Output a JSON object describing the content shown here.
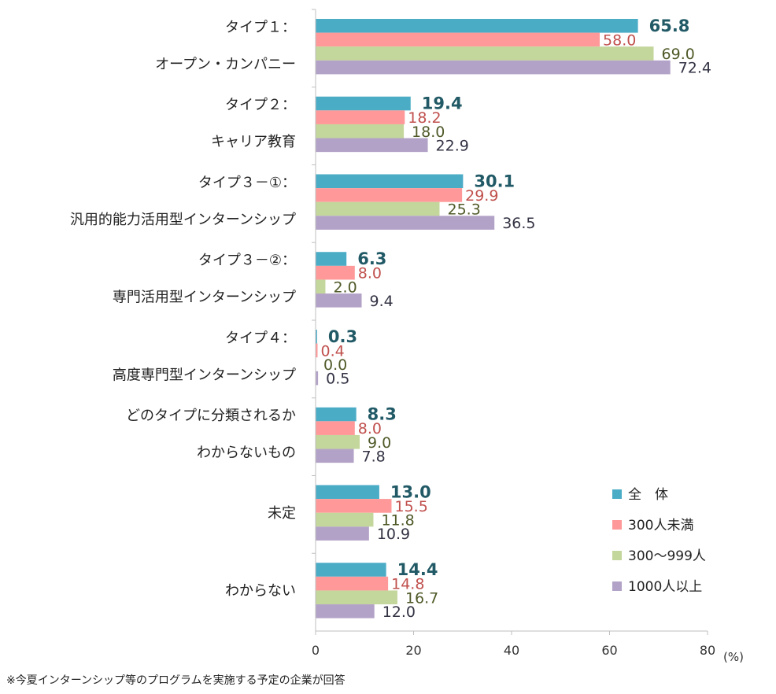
{
  "chart_data": {
    "type": "bar",
    "orientation": "horizontal",
    "categories": [
      [
        "タイプ１：",
        "オープン・カンパニー"
      ],
      [
        "タイプ２：",
        "キャリア教育"
      ],
      [
        "タイプ３－①：",
        "汎用的能力活用型インターンシップ"
      ],
      [
        "タイプ３－②：",
        "専門活用型インターンシップ"
      ],
      [
        "タイプ４：",
        "高度専門型インターンシップ"
      ],
      [
        "どのタイプに分類されるか",
        "わからないもの"
      ],
      [
        "未定"
      ],
      [
        "わからない"
      ]
    ],
    "series": [
      {
        "name": "全　体",
        "color": "#4bacc6",
        "label_color": "#215a66",
        "values": [
          65.8,
          19.4,
          30.1,
          6.3,
          0.3,
          8.3,
          13.0,
          14.4
        ],
        "labels": [
          "65.8",
          "19.4",
          "30.1",
          "6.3",
          "0.3",
          "8.3",
          "13.0",
          "14.4"
        ]
      },
      {
        "name": "300人未満",
        "color": "#ff9999",
        "label_color": "#c0504d",
        "values": [
          58.0,
          18.2,
          29.9,
          8.0,
          0.4,
          8.0,
          15.5,
          14.8
        ],
        "labels": [
          "58.0",
          "18.2",
          "29.9",
          "8.0",
          "0.4",
          "8.0",
          "15.5",
          "14.8"
        ]
      },
      {
        "name": "300～999人",
        "color": "#c3d69b",
        "label_color": "#4f5a28",
        "values": [
          69.0,
          18.0,
          25.3,
          2.0,
          0.0,
          9.0,
          11.8,
          16.7
        ],
        "labels": [
          "69.0",
          "18.0",
          "25.3",
          "2.0",
          "0.0",
          "9.0",
          "11.8",
          "16.7"
        ]
      },
      {
        "name": "1000人以上",
        "color": "#b3a2c7",
        "label_color": "#333344",
        "values": [
          72.4,
          22.9,
          36.5,
          9.4,
          0.5,
          7.8,
          10.9,
          12.0
        ],
        "labels": [
          "72.4",
          "22.9",
          "36.5",
          "9.4",
          "0.5",
          "7.8",
          "10.9",
          "12.0"
        ]
      }
    ],
    "xlim": [
      0,
      80
    ],
    "xticks": [
      "0",
      "20",
      "40",
      "60",
      "80"
    ],
    "xtick_values": [
      0,
      20,
      40,
      60,
      80
    ],
    "unit": "(%)",
    "legend_position": "bottom-right",
    "title": ""
  },
  "footnote": "※今夏インターンシップ等のプログラムを実施する予定の企業が回答"
}
